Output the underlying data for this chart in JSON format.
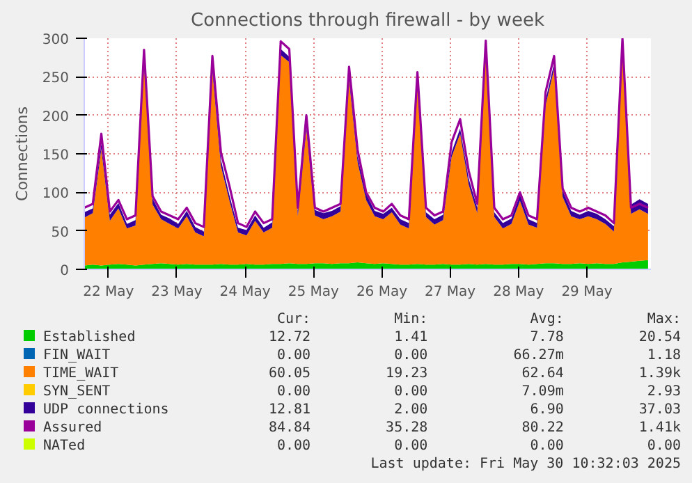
{
  "chart_data": {
    "type": "area",
    "title": "Connections through firewall - by week",
    "ylabel": "Connections",
    "stacked": true,
    "x": [
      "2025-05-22T03:30",
      "2025-05-22T06:30",
      "2025-05-22T09:30",
      "2025-05-22T12:30",
      "2025-05-22T15:30",
      "2025-05-22T18:30",
      "2025-05-22T21:30",
      "2025-05-23T00:30",
      "2025-05-23T03:30",
      "2025-05-23T06:30",
      "2025-05-23T09:30",
      "2025-05-23T12:30",
      "2025-05-23T15:30",
      "2025-05-23T18:30",
      "2025-05-23T21:30",
      "2025-05-24T00:30",
      "2025-05-24T03:30",
      "2025-05-24T06:30",
      "2025-05-24T09:30",
      "2025-05-24T12:30",
      "2025-05-24T15:30",
      "2025-05-24T18:30",
      "2025-05-24T21:30",
      "2025-05-25T00:30",
      "2025-05-25T03:30",
      "2025-05-25T06:30",
      "2025-05-25T09:30",
      "2025-05-25T12:30",
      "2025-05-25T15:30",
      "2025-05-25T18:30",
      "2025-05-25T21:30",
      "2025-05-26T00:30",
      "2025-05-26T03:30",
      "2025-05-26T06:30",
      "2025-05-26T09:30",
      "2025-05-26T12:30",
      "2025-05-26T15:30",
      "2025-05-26T18:30",
      "2025-05-26T21:30",
      "2025-05-27T00:30",
      "2025-05-27T03:30",
      "2025-05-27T06:30",
      "2025-05-27T09:30",
      "2025-05-27T12:30",
      "2025-05-27T15:30",
      "2025-05-27T18:30",
      "2025-05-27T21:30",
      "2025-05-28T00:30",
      "2025-05-28T03:30",
      "2025-05-28T06:30",
      "2025-05-28T09:30",
      "2025-05-28T12:30",
      "2025-05-28T15:30",
      "2025-05-28T18:30",
      "2025-05-28T21:30",
      "2025-05-29T00:30",
      "2025-05-29T03:30",
      "2025-05-29T06:30",
      "2025-05-29T09:30",
      "2025-05-29T12:30",
      "2025-05-29T15:30",
      "2025-05-29T18:30",
      "2025-05-29T21:30",
      "2025-05-30T00:30",
      "2025-05-30T03:30",
      "2025-05-30T06:30",
      "2025-05-30T09:30"
    ],
    "xlim": [
      "2025-05-22T03:30",
      "2025-05-30T10:30"
    ],
    "xticks": [
      {
        "value": "2025-05-22T12:00",
        "label": "22 May"
      },
      {
        "value": "2025-05-23T12:00",
        "label": "23 May"
      },
      {
        "value": "2025-05-24T12:00",
        "label": "24 May"
      },
      {
        "value": "2025-05-25T12:00",
        "label": "25 May"
      },
      {
        "value": "2025-05-26T12:00",
        "label": "26 May"
      },
      {
        "value": "2025-05-27T12:00",
        "label": "27 May"
      },
      {
        "value": "2025-05-28T12:00",
        "label": "28 May"
      },
      {
        "value": "2025-05-29T12:00",
        "label": "29 May"
      }
    ],
    "ylim": [
      0,
      300
    ],
    "yticks": [
      0,
      50,
      100,
      150,
      200,
      250,
      300
    ],
    "grid": true,
    "legend": "bottom",
    "series": [
      {
        "name": "Established",
        "color": "#00cc00",
        "values": [
          5,
          6,
          5,
          6,
          7,
          6,
          5,
          6,
          7,
          8,
          7,
          6,
          7,
          6,
          6,
          6,
          7,
          6,
          6,
          7,
          6,
          6,
          7,
          7,
          8,
          7,
          7,
          8,
          8,
          7,
          8,
          8,
          9,
          8,
          7,
          8,
          7,
          6,
          6,
          7,
          6,
          6,
          7,
          6,
          6,
          7,
          6,
          7,
          6,
          6,
          7,
          7,
          6,
          7,
          8,
          8,
          7,
          7,
          8,
          7,
          8,
          7,
          7,
          9,
          10,
          11,
          12
        ]
      },
      {
        "name": "FIN_WAIT",
        "color": "#0066b3",
        "values": [
          null,
          null,
          null,
          null,
          null,
          null,
          null,
          null,
          null,
          null,
          null,
          null,
          null,
          null,
          null,
          null,
          null,
          null,
          null,
          null,
          null,
          null,
          null,
          null,
          null,
          null,
          null,
          null,
          null,
          null,
          null,
          null,
          null,
          null,
          null,
          null,
          null,
          null,
          null,
          null,
          null,
          null,
          null,
          null,
          null,
          null,
          null,
          null,
          null,
          null,
          null,
          null,
          null,
          null,
          null,
          null,
          null,
          null,
          null,
          null,
          null,
          null,
          null,
          null,
          null,
          null,
          null
        ]
      },
      {
        "name": "TIME_WAIT",
        "color": "#ff8000",
        "values": [
          62,
          67,
          151,
          57,
          72,
          47,
          52,
          260,
          77,
          57,
          52,
          47,
          62,
          42,
          37,
          252,
          127,
          83,
          42,
          37,
          57,
          42,
          47,
          271,
          261,
          62,
          175,
          62,
          57,
          62,
          67,
          238,
          130,
          82,
          62,
          57,
          67,
          52,
          47,
          231,
          62,
          52,
          57,
          140,
          170,
          103,
          67,
          272,
          62,
          47,
          52,
          82,
          52,
          47,
          205,
          252,
          87,
          62,
          57,
          62,
          57,
          52,
          42,
          275,
          62,
          67,
          60
        ]
      },
      {
        "name": "SYN_SENT",
        "color": "#ffcc00",
        "values": [
          null,
          null,
          null,
          null,
          null,
          null,
          null,
          null,
          null,
          null,
          null,
          null,
          null,
          null,
          null,
          null,
          null,
          null,
          null,
          null,
          null,
          null,
          null,
          null,
          null,
          null,
          null,
          null,
          null,
          null,
          null,
          null,
          null,
          null,
          null,
          null,
          null,
          null,
          null,
          null,
          null,
          null,
          null,
          null,
          null,
          null,
          null,
          null,
          null,
          null,
          null,
          null,
          null,
          null,
          null,
          null,
          null,
          null,
          null,
          null,
          null,
          null,
          null,
          null,
          null,
          null,
          null
        ]
      },
      {
        "name": "UDP connections",
        "color": "#330099",
        "values": [
          7,
          6,
          7,
          8,
          7,
          6,
          7,
          7,
          8,
          6,
          7,
          6,
          7,
          7,
          6,
          7,
          8,
          7,
          6,
          7,
          7,
          6,
          7,
          8,
          7,
          7,
          6,
          7,
          8,
          7,
          7,
          6,
          7,
          8,
          7,
          7,
          6,
          7,
          7,
          8,
          6,
          7,
          7,
          6,
          7,
          8,
          7,
          7,
          6,
          7,
          7,
          8,
          7,
          6,
          7,
          7,
          8,
          7,
          6,
          7,
          7,
          6,
          7,
          8,
          12,
          13,
          13
        ]
      },
      {
        "name": "Assured",
        "type": "line",
        "color": "#990099",
        "values": [
          80,
          85,
          176,
          75,
          90,
          65,
          70,
          285,
          95,
          75,
          70,
          65,
          80,
          60,
          55,
          277,
          152,
          108,
          60,
          55,
          75,
          60,
          65,
          296,
          286,
          80,
          200,
          80,
          75,
          80,
          85,
          263,
          155,
          100,
          80,
          75,
          85,
          70,
          65,
          256,
          80,
          70,
          75,
          165,
          195,
          128,
          85,
          297,
          80,
          65,
          70,
          100,
          70,
          65,
          230,
          277,
          105,
          80,
          75,
          80,
          75,
          70,
          60,
          300,
          80,
          85,
          80
        ]
      },
      {
        "name": "NATed",
        "type": "line",
        "color": "#ccff00",
        "values": [
          null,
          null,
          null,
          null,
          null,
          null,
          null,
          null,
          null,
          null,
          null,
          null,
          null,
          null,
          null,
          null,
          null,
          null,
          null,
          null,
          null,
          null,
          null,
          null,
          null,
          null,
          null,
          null,
          null,
          null,
          null,
          null,
          null,
          null,
          null,
          null,
          null,
          null,
          null,
          null,
          null,
          null,
          null,
          null,
          null,
          null,
          null,
          null,
          null,
          null,
          null,
          null,
          null,
          null,
          null,
          null,
          null,
          null,
          null,
          null,
          null,
          null,
          null,
          null,
          null,
          null,
          null
        ]
      }
    ],
    "annotations": [
      "Cur:",
      "Min:",
      "Avg:",
      "Max:",
      "12.72",
      "1.41",
      "7.78",
      "20.54",
      "0.00",
      "0.00",
      "66.27m",
      "1.18",
      "60.05",
      "19.23",
      "62.64",
      "1.39k",
      "0.00",
      "0.00",
      "7.09m",
      "2.93",
      "12.81",
      "2.00",
      "6.90",
      "37.03",
      "84.84",
      "35.28",
      "80.22",
      "1.41k",
      "0.00",
      "0.00",
      "0.00",
      "0.00",
      "Last update: Fri May 30 10:32:03 2025"
    ]
  }
}
